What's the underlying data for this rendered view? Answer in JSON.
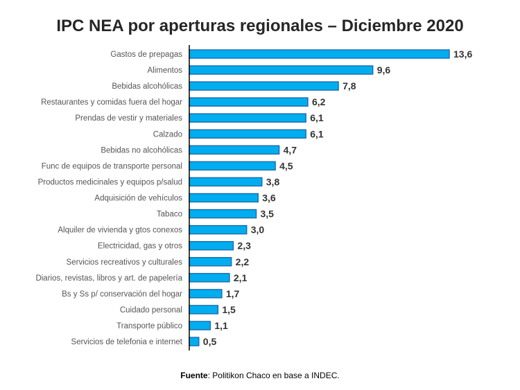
{
  "chart_data": {
    "type": "bar",
    "orientation": "horizontal",
    "title": "IPC NEA por aperturas regionales – Diciembre 2020",
    "categories": [
      "Gastos de prepagas",
      "Alimentos",
      "Bebidas alcohólicas",
      "Restaurantes y comidas fuera del hogar",
      "Prendas de vestir y materiales",
      "Calzado",
      "Bebidas no alcohólicas",
      "Func de equipos de transporte personal",
      "Productos medicinales y equipos p/salud",
      "Adquisición de vehículos",
      "Tabaco",
      "Alquiler de vivienda y gtos conexos",
      "Electricidad, gas y otros",
      "Servicios recreativos y culturales",
      "Diarios, revistas, libros y art. de papelería",
      "Bs y Ss p/ conservación del hogar",
      "Cuidado personal",
      "Transporte público",
      "Servicios  de telefonia e internet"
    ],
    "values": [
      13.6,
      9.6,
      7.8,
      6.2,
      6.1,
      6.1,
      4.7,
      4.5,
      3.8,
      3.6,
      3.5,
      3.0,
      2.3,
      2.2,
      2.1,
      1.7,
      1.5,
      1.1,
      0.5
    ],
    "data_labels": [
      "13,6",
      "9,6",
      "7,8",
      "6,2",
      "6,1",
      "6,1",
      "4,7",
      "4,5",
      "3,8",
      "3,6",
      "3,5",
      "3,0",
      "2,3",
      "2,2",
      "2,1",
      "1,7",
      "1,5",
      "1,1",
      "0,5"
    ],
    "xlim": [
      0,
      14
    ],
    "grid": false,
    "legend": "none",
    "colors": {
      "bar_fill": "#00AEEF",
      "bar_border": "#1F6FB5",
      "axis": "#000000"
    }
  },
  "footer": {
    "source_label": "Fuente",
    "source_text": ": Politikon Chaco en base a INDEC."
  }
}
